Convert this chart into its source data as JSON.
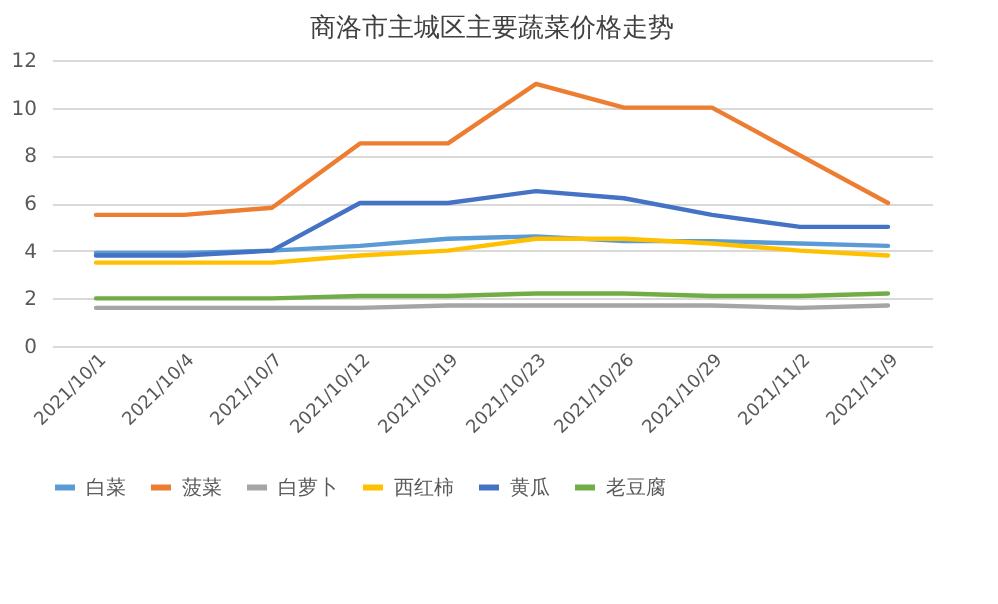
{
  "chart_data": {
    "type": "line",
    "title": "商洛市主城区主要蔬菜价格走势",
    "categories": [
      "2021/10/1",
      "2021/10/4",
      "2021/10/7",
      "2021/10/12",
      "2021/10/19",
      "2021/10/23",
      "2021/10/26",
      "2021/10/29",
      "2021/11/2",
      "2021/11/9"
    ],
    "series": [
      {
        "name": "白菜",
        "color": "#5b9bd5",
        "values": [
          3.9,
          3.9,
          4,
          4.2,
          4.5,
          4.6,
          4.4,
          4.4,
          4.3,
          4.2
        ]
      },
      {
        "name": "菠菜",
        "color": "#ed7d31",
        "values": [
          5.5,
          5.5,
          5.8,
          8.5,
          8.5,
          11,
          10,
          10,
          8,
          6
        ]
      },
      {
        "name": "白萝卜",
        "color": "#a5a5a5",
        "values": [
          1.6,
          1.6,
          1.6,
          1.6,
          1.7,
          1.7,
          1.7,
          1.7,
          1.6,
          1.7
        ]
      },
      {
        "name": "西红柿",
        "color": "#ffc000",
        "values": [
          3.5,
          3.5,
          3.5,
          3.8,
          4,
          4.5,
          4.5,
          4.3,
          4,
          3.8
        ]
      },
      {
        "name": "黄瓜",
        "color": "#4472c4",
        "values": [
          3.8,
          3.8,
          4,
          6,
          6,
          6.5,
          6.2,
          5.5,
          5,
          5
        ]
      },
      {
        "name": "老豆腐",
        "color": "#70ad47",
        "values": [
          2,
          2,
          2,
          2.1,
          2.1,
          2.2,
          2.2,
          2.1,
          2.1,
          2.2
        ]
      }
    ],
    "ylim": [
      0,
      12
    ],
    "yticks": [
      0,
      2,
      4,
      6,
      8,
      10,
      12
    ],
    "grid": "y",
    "legend": "bottom",
    "marker": "none",
    "line_style": "solid"
  }
}
